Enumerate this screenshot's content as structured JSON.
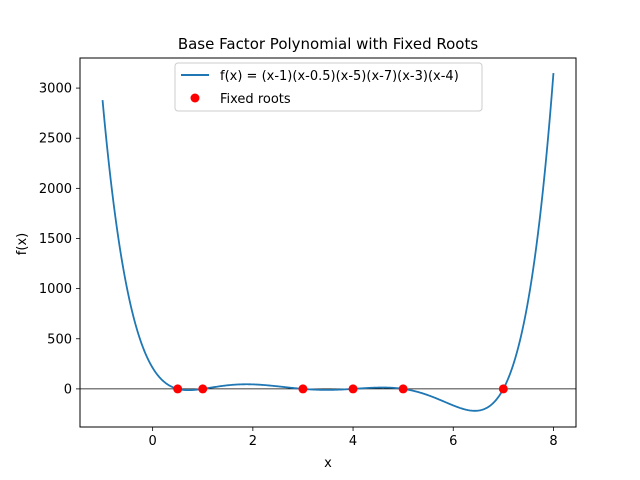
{
  "chart_data": {
    "type": "line",
    "title": "Base Factor Polynomial with Fixed Roots",
    "xlabel": "x",
    "ylabel": "f(x)",
    "xlim": [
      -1.45,
      8.45
    ],
    "ylim": [
      -380,
      3300
    ],
    "x_ticks": [
      0,
      2,
      4,
      6,
      8
    ],
    "y_ticks": [
      0,
      500,
      1000,
      1500,
      2000,
      2500,
      3000
    ],
    "grid": false,
    "legend_position": "top-center",
    "series": [
      {
        "name": "f(x) = (x-1)(x-0.5)(x-5)(x-7)(x-3)(x-4)",
        "kind": "line",
        "color": "#1f77b4",
        "function_roots": [
          1,
          0.5,
          5,
          7,
          3,
          4
        ],
        "x_range": [
          -1,
          8
        ]
      },
      {
        "name": "Fixed roots",
        "kind": "scatter",
        "color": "#ff0000",
        "x": [
          0.5,
          1,
          3,
          4,
          5,
          7
        ],
        "y": [
          0,
          0,
          0,
          0,
          0,
          0
        ]
      }
    ],
    "reference_line": {
      "y": 0,
      "color": "#000000"
    }
  }
}
